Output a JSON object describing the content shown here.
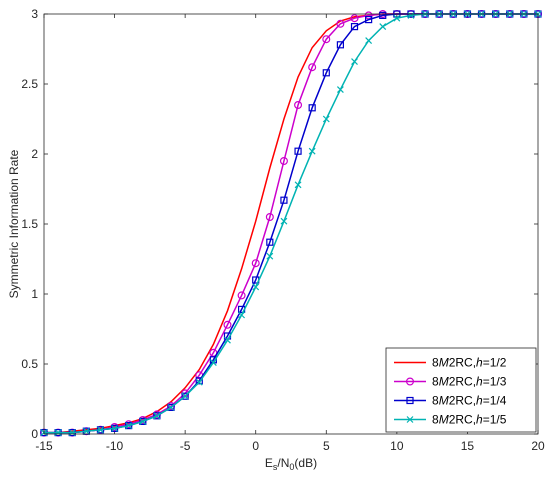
{
  "chart_data": {
    "type": "line",
    "title": "",
    "xlabel": {
      "main": "E",
      "sub1": "s",
      "mid": "/N",
      "sub2": "0",
      "tail": "(dB)"
    },
    "ylabel": "Symmetric Information Rate",
    "xlim": [
      -15,
      20
    ],
    "ylim": [
      0,
      3
    ],
    "xticks": [
      -15,
      -10,
      -5,
      0,
      5,
      10,
      15,
      20
    ],
    "yticks": [
      0,
      0.5,
      1,
      1.5,
      2,
      2.5,
      3
    ],
    "grid": false,
    "legend_position": "bottom-right",
    "x": [
      -15,
      -14,
      -13,
      -12,
      -11,
      -10,
      -9,
      -8,
      -7,
      -6,
      -5,
      -4,
      -3,
      -2,
      -1,
      0,
      1,
      2,
      3,
      4,
      5,
      6,
      7,
      8,
      9,
      10,
      11,
      12,
      13,
      14,
      15,
      16,
      17,
      18,
      19,
      20
    ],
    "series": [
      {
        "label": {
          "pre": "8",
          "ital1": "M",
          "mid": "2RC,",
          "ital2": "h",
          "post": "=1/2"
        },
        "color": "#ff0000",
        "marker": "none",
        "values": [
          0.01,
          0.01,
          0.02,
          0.03,
          0.04,
          0.06,
          0.08,
          0.11,
          0.16,
          0.23,
          0.33,
          0.46,
          0.64,
          0.88,
          1.18,
          1.52,
          1.9,
          2.25,
          2.55,
          2.76,
          2.88,
          2.95,
          2.98,
          2.99,
          3.0,
          3.0,
          3.0,
          3.0,
          3.0,
          3.0,
          3.0,
          3.0,
          3.0,
          3.0,
          3.0,
          3.0
        ]
      },
      {
        "label": {
          "pre": "8",
          "ital1": "M",
          "mid": "2RC,",
          "ital2": "h",
          "post": "=1/3"
        },
        "color": "#cc00cc",
        "marker": "circle",
        "values": [
          0.01,
          0.01,
          0.01,
          0.02,
          0.03,
          0.05,
          0.07,
          0.1,
          0.14,
          0.2,
          0.29,
          0.42,
          0.58,
          0.78,
          0.99,
          1.22,
          1.55,
          1.95,
          2.35,
          2.62,
          2.82,
          2.93,
          2.97,
          2.99,
          3.0,
          3.0,
          3.0,
          3.0,
          3.0,
          3.0,
          3.0,
          3.0,
          3.0,
          3.0,
          3.0,
          3.0
        ]
      },
      {
        "label": {
          "pre": "8",
          "ital1": "M",
          "mid": "2RC,",
          "ital2": "h",
          "post": "=1/4"
        },
        "color": "#0000cc",
        "marker": "square",
        "values": [
          0.01,
          0.01,
          0.01,
          0.02,
          0.03,
          0.04,
          0.06,
          0.09,
          0.13,
          0.19,
          0.27,
          0.38,
          0.53,
          0.7,
          0.89,
          1.1,
          1.37,
          1.67,
          2.02,
          2.33,
          2.58,
          2.78,
          2.91,
          2.96,
          2.99,
          3.0,
          3.0,
          3.0,
          3.0,
          3.0,
          3.0,
          3.0,
          3.0,
          3.0,
          3.0,
          3.0
        ]
      },
      {
        "label": {
          "pre": "8",
          "ital1": "M",
          "mid": "2RC,",
          "ital2": "h",
          "post": "=1/5"
        },
        "color": "#00b3b3",
        "marker": "x",
        "values": [
          0.01,
          0.01,
          0.01,
          0.02,
          0.03,
          0.04,
          0.06,
          0.09,
          0.13,
          0.19,
          0.27,
          0.37,
          0.51,
          0.67,
          0.85,
          1.05,
          1.27,
          1.52,
          1.78,
          2.02,
          2.25,
          2.46,
          2.66,
          2.81,
          2.91,
          2.97,
          2.99,
          3.0,
          3.0,
          3.0,
          3.0,
          3.0,
          3.0,
          3.0,
          3.0,
          3.0
        ]
      }
    ]
  }
}
